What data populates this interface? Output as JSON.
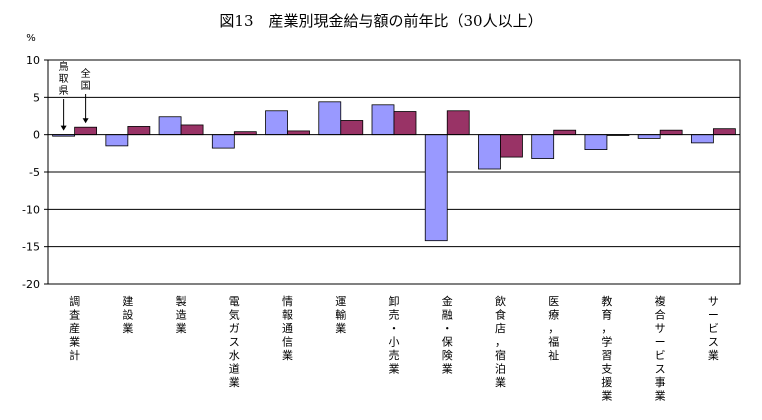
{
  "chart_data": {
    "type": "bar",
    "title": "図13　産業別現金給与額の前年比（30人以上）",
    "unit_label": "%",
    "ylim": [
      -20,
      10
    ],
    "yticks": [
      10,
      5,
      0,
      -5,
      -10,
      -15,
      -20
    ],
    "grid": "horizontal",
    "legend": "none",
    "categories": [
      "調査産業計",
      "建設業",
      "製造業",
      "電気ガス水道業",
      "情報通信業",
      "運輸業",
      "卸売・小売業",
      "金融・保険業",
      "飲食店，宿泊業",
      "医療，福祉",
      "教育，学習支援業",
      "複合サービス事業",
      "サービス業"
    ],
    "series": [
      {
        "values": [
          -0.2,
          -1.5,
          2.4,
          -1.8,
          3.2,
          4.4,
          4.0,
          -14.2,
          -4.6,
          -3.2,
          -2.0,
          -0.5,
          -1.1
        ],
        "color": "#9999ff"
      },
      {
        "values": [
          1.0,
          1.1,
          1.3,
          0.4,
          0.5,
          1.9,
          3.1,
          3.2,
          -3.0,
          0.6,
          -0.1,
          0.6,
          0.8
        ],
        "color": "#993366"
      }
    ],
    "annotations": [
      {
        "text": "鳥取県"
      },
      {
        "text": "全国"
      }
    ]
  }
}
